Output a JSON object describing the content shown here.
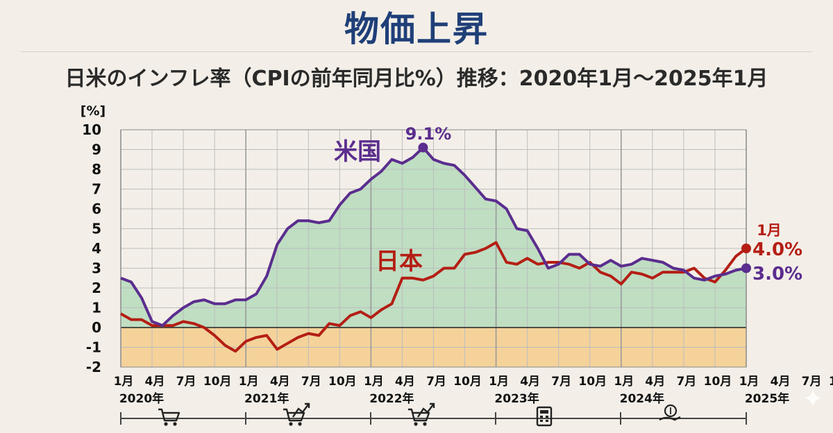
{
  "page": {
    "title": "物価上昇",
    "subtitle": "日米のインフレ率（CPIの前年同月比%）推移：2020年1月〜2025年1月"
  },
  "chart_data": {
    "type": "line",
    "title": "日米のインフレ率（CPIの前年同月比%）推移：2020年1月〜2025年1月",
    "ylabel": "[%]",
    "ylim": [
      -2,
      10
    ],
    "yticks": [
      "10",
      "9",
      "8",
      "7",
      "6",
      "5",
      "4",
      "3",
      "2",
      "1",
      "0",
      "-1",
      "-2"
    ],
    "grid": true,
    "x_start": "2020-01",
    "x_end": "2025-01",
    "x_tick_labels": [
      "1月",
      "4月",
      "7月",
      "10月",
      "1月",
      "4月",
      "7月",
      "10月",
      "1月",
      "4月",
      "7月",
      "10月",
      "1月",
      "4月",
      "7月",
      "10月",
      "1月",
      "4月",
      "7月",
      "10月",
      "1月",
      "4月",
      "7月",
      "10月",
      "1月"
    ],
    "year_labels": [
      "2020年",
      "2021年",
      "2022年",
      "2023年",
      "2024年",
      "2025年"
    ],
    "series": [
      {
        "name": "米国",
        "color": "#5b2d8e",
        "values": [
          2.5,
          2.3,
          1.5,
          0.3,
          0.1,
          0.6,
          1.0,
          1.3,
          1.4,
          1.2,
          1.2,
          1.4,
          1.4,
          1.7,
          2.6,
          4.2,
          5.0,
          5.4,
          5.4,
          5.3,
          5.4,
          6.2,
          6.8,
          7.0,
          7.5,
          7.9,
          8.5,
          8.3,
          8.6,
          9.1,
          8.5,
          8.3,
          8.2,
          7.7,
          7.1,
          6.5,
          6.4,
          6.0,
          5.0,
          4.9,
          4.0,
          3.0,
          3.2,
          3.7,
          3.7,
          3.2,
          3.1,
          3.4,
          3.1,
          3.2,
          3.5,
          3.4,
          3.3,
          3.0,
          2.9,
          2.5,
          2.4,
          2.6,
          2.7,
          2.9,
          3.0
        ]
      },
      {
        "name": "日本",
        "color": "#b41e14",
        "values": [
          0.7,
          0.4,
          0.4,
          0.1,
          0.1,
          0.1,
          0.3,
          0.2,
          0.0,
          -0.4,
          -0.9,
          -1.2,
          -0.7,
          -0.5,
          -0.4,
          -1.1,
          -0.8,
          -0.5,
          -0.3,
          -0.4,
          0.2,
          0.1,
          0.6,
          0.8,
          0.5,
          0.9,
          1.2,
          2.5,
          2.5,
          2.4,
          2.6,
          3.0,
          3.0,
          3.7,
          3.8,
          4.0,
          4.3,
          3.3,
          3.2,
          3.5,
          3.2,
          3.3,
          3.3,
          3.2,
          3.0,
          3.3,
          2.8,
          2.6,
          2.2,
          2.8,
          2.7,
          2.5,
          2.8,
          2.8,
          2.8,
          3.0,
          2.5,
          2.3,
          2.9,
          3.6,
          4.0
        ]
      }
    ],
    "annotations": [
      {
        "text": "米国",
        "series": "米国"
      },
      {
        "text": "日本",
        "series": "日本"
      },
      {
        "text": "9.1%",
        "series": "米国",
        "point": "2022-06",
        "value": 9.1
      },
      {
        "text": "1月",
        "series": "日本",
        "point": "2025-01"
      },
      {
        "text": "4.0%",
        "series": "日本",
        "point": "2025-01",
        "value": 4.0
      },
      {
        "text": "3.0%",
        "series": "米国",
        "point": "2025-01",
        "value": 3.0
      }
    ]
  },
  "colors": {
    "title": "#1f3f78",
    "positive_fill": "#bcdcc0",
    "negative_fill": "#f4d29a",
    "grid": "#bdbdbd",
    "axis_text": "#111111"
  },
  "timeline_icons": [
    "cart-icon",
    "cart-up-icon",
    "cart-up-icon",
    "calculator-icon",
    "money-hand-icon"
  ]
}
